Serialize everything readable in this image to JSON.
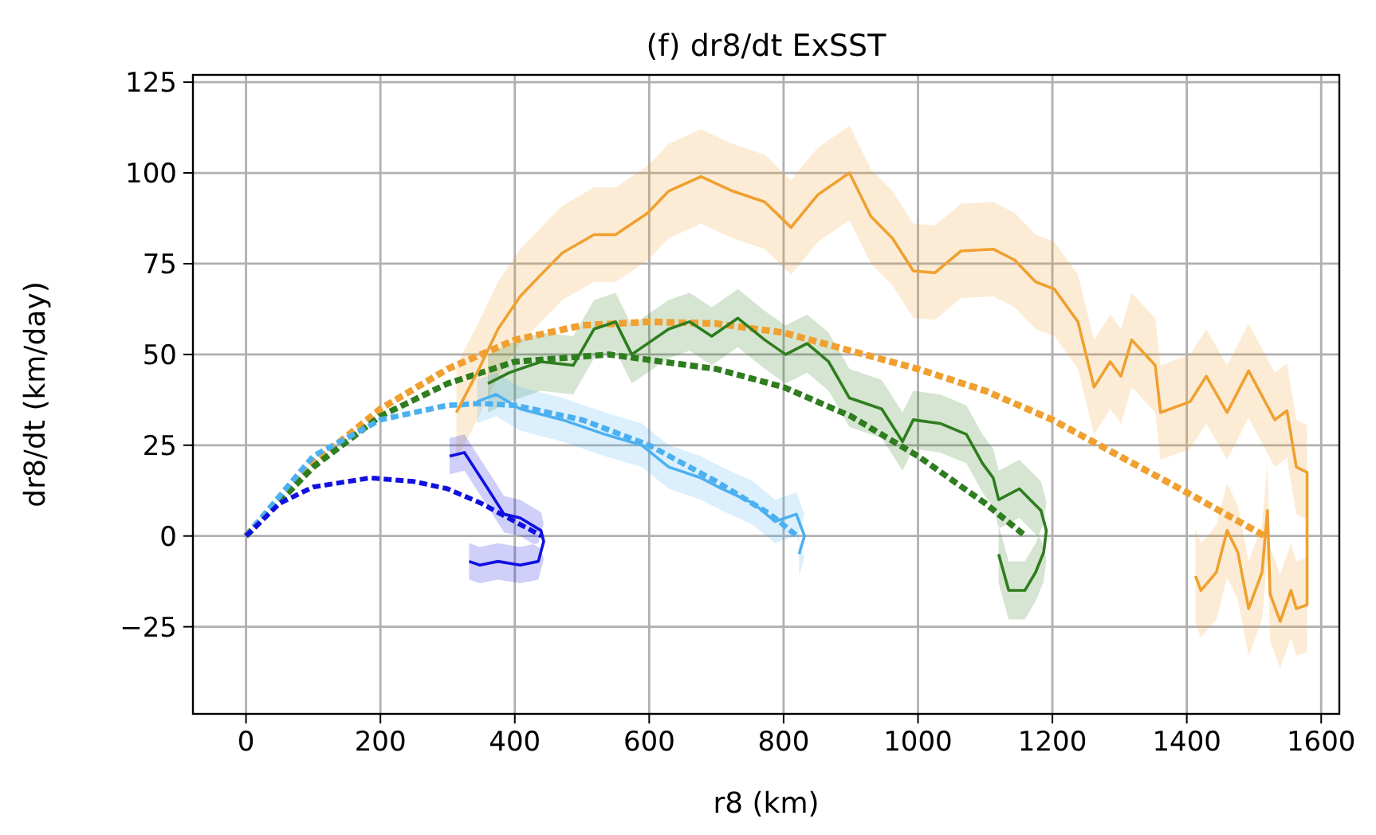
{
  "chart_data": {
    "type": "line",
    "title": "(f) dr8/dt ExSST",
    "xlabel": "r8 (km)",
    "ylabel": "dr8/dt (km/day)",
    "xlim": [
      -79,
      1627
    ],
    "xticks": [
      0,
      200,
      400,
      600,
      800,
      1000,
      1200,
      1400,
      1600
    ],
    "ylim": [
      -49,
      127
    ],
    "yticks": [
      {
        "value": -25,
        "label": "−25"
      },
      0,
      25,
      50,
      75,
      100,
      125
    ],
    "grid": true,
    "series": [
      {
        "color": "#f0a030",
        "x": [
          313,
          344,
          375,
          408,
          439,
          471,
          518,
          550,
          598,
          629,
          677,
          724,
          772,
          811,
          851,
          898,
          930,
          962,
          993,
          1025,
          1064,
          1112,
          1144,
          1175,
          1203,
          1238,
          1262,
          1286,
          1302,
          1318,
          1353,
          1361,
          1405,
          1429,
          1460,
          1492,
          1531,
          1549,
          1563,
          1579,
          1579,
          1579,
          1563,
          1555,
          1539,
          1524,
          1520,
          1512,
          1492,
          1476,
          1460,
          1444,
          1421,
          1413
        ],
        "values": [
          34,
          45,
          57,
          66,
          72,
          78,
          83,
          83,
          89,
          95,
          99,
          95,
          92,
          85,
          94,
          100,
          88,
          82,
          73,
          72.5,
          78.5,
          79,
          76,
          70,
          68,
          59,
          41,
          48,
          44,
          54,
          47,
          34,
          37,
          44,
          34,
          45.5,
          32,
          34.5,
          19,
          17.5,
          0,
          -19,
          -20,
          -15,
          -23.5,
          -16,
          7,
          -10,
          -20,
          -4.5,
          1.5,
          -10,
          -15,
          -11
        ],
        "lower": [
          21,
          32,
          44,
          53,
          59,
          65,
          70,
          70,
          76,
          82,
          86,
          82,
          79,
          72,
          81,
          87,
          75,
          69,
          60,
          59.5,
          65.5,
          66,
          63,
          57,
          55,
          46,
          28,
          35,
          31,
          41,
          34,
          21,
          24,
          31,
          21,
          32.5,
          19,
          21.5,
          6,
          4.5,
          -13,
          -32,
          -33,
          -28,
          -36.5,
          -29,
          -6,
          -23,
          -33,
          -17.5,
          -11.5,
          -23,
          -28,
          -24
        ],
        "upper": [
          47,
          58,
          70,
          79,
          85,
          91,
          96,
          96,
          102,
          108,
          112,
          108,
          105,
          98,
          107,
          113,
          101,
          95,
          86,
          85.5,
          91.5,
          92,
          89,
          83,
          81,
          72,
          54,
          61,
          57,
          67,
          60,
          47,
          50,
          57,
          47,
          58.5,
          45,
          47.5,
          32,
          30.5,
          13,
          -6,
          -7,
          -2,
          -10.5,
          -3,
          20,
          3,
          -7,
          8.5,
          14.5,
          3,
          -2,
          2
        ]
      },
      {
        "color": "#2e7d1e",
        "x": [
          360,
          392,
          439,
          487,
          518,
          550,
          574,
          629,
          660,
          693,
          732,
          772,
          803,
          835,
          867,
          898,
          946,
          977,
          993,
          1033,
          1072,
          1096,
          1112,
          1120,
          1151,
          1167,
          1183,
          1191,
          1187,
          1175,
          1159,
          1135,
          1120
        ],
        "values": [
          42,
          45,
          48,
          47,
          57,
          59,
          50,
          57,
          59,
          55,
          60,
          54,
          50,
          53,
          48,
          38,
          35,
          26,
          32,
          31,
          28,
          20,
          16,
          10,
          13,
          10,
          7,
          1.5,
          -4.5,
          -10,
          -15,
          -15,
          -5
        ],
        "lower": [
          34,
          37,
          40,
          39,
          49,
          51,
          42,
          49,
          51,
          47,
          52,
          46,
          42,
          45,
          40,
          30,
          27,
          18,
          24,
          23,
          20,
          12,
          8,
          2,
          5,
          2,
          -1,
          -6.5,
          -12.5,
          -18,
          -23,
          -23,
          -13
        ],
        "upper": [
          50,
          53,
          56,
          55,
          65,
          67,
          58,
          65,
          67,
          63,
          68,
          62,
          58,
          61,
          56,
          46,
          43,
          34,
          40,
          39,
          36,
          28,
          24,
          18,
          21,
          18,
          15,
          9.5,
          3.5,
          -2,
          -7,
          -7,
          3
        ]
      },
      {
        "color": "#4cb0f0",
        "x": [
          344,
          372,
          408,
          471,
          534,
          589,
          629,
          677,
          708,
          755,
          787,
          819,
          831,
          823
        ],
        "values": [
          37,
          39,
          35,
          32,
          28,
          25,
          19,
          16,
          13,
          9,
          4,
          6,
          0,
          -5
        ],
        "lower": [
          31,
          33,
          29,
          26,
          22,
          19,
          13,
          10,
          7,
          3,
          -2,
          0,
          -6,
          -11
        ],
        "upper": [
          43,
          45,
          41,
          38,
          34,
          31,
          25,
          22,
          19,
          15,
          10,
          12,
          6,
          1
        ]
      },
      {
        "color": "#1010e0",
        "x": [
          303,
          325,
          360,
          384,
          408,
          439,
          443,
          435,
          408,
          375,
          348,
          332
        ],
        "values": [
          22,
          23,
          13,
          6,
          5,
          1.5,
          -1.5,
          -7,
          -8,
          -7,
          -8,
          -7
        ],
        "lower": [
          17,
          18,
          8,
          1,
          0,
          -3.5,
          -6.5,
          -12,
          -13,
          -12,
          -13,
          -12
        ],
        "upper": [
          27,
          28,
          18,
          11,
          10,
          6.5,
          3.5,
          -2,
          -3,
          -2,
          -3,
          -2
        ]
      },
      {
        "color": "#1010e0",
        "line_style": "dashed",
        "x": [
          0,
          50,
          100,
          185,
          250,
          300,
          350,
          400,
          440
        ],
        "values": [
          0,
          9,
          13.5,
          16,
          15,
          13,
          9,
          4,
          0
        ]
      },
      {
        "color": "#4cb0f0",
        "line_style": "dashed",
        "x": [
          0,
          100,
          200,
          300,
          350,
          400,
          500,
          600,
          700,
          780,
          820
        ],
        "values": [
          0,
          22,
          32,
          36,
          36.5,
          36,
          32,
          25,
          15,
          6,
          0
        ]
      },
      {
        "color": "#2e7d1e",
        "line_style": "dashed",
        "x": [
          0,
          100,
          200,
          300,
          400,
          540,
          700,
          800,
          900,
          1000,
          1100,
          1160
        ],
        "values": [
          0,
          19,
          33,
          42,
          48,
          50,
          46,
          41,
          33,
          22,
          9,
          0
        ]
      },
      {
        "color": "#f0a030",
        "line_style": "dashed",
        "x": [
          0,
          100,
          200,
          300,
          400,
          500,
          600,
          700,
          800,
          900,
          1000,
          1100,
          1200,
          1300,
          1400,
          1516
        ],
        "values": [
          0,
          20,
          35,
          46,
          54,
          58,
          59,
          58.5,
          56,
          51,
          46,
          40,
          32,
          22,
          12,
          0
        ]
      }
    ]
  }
}
